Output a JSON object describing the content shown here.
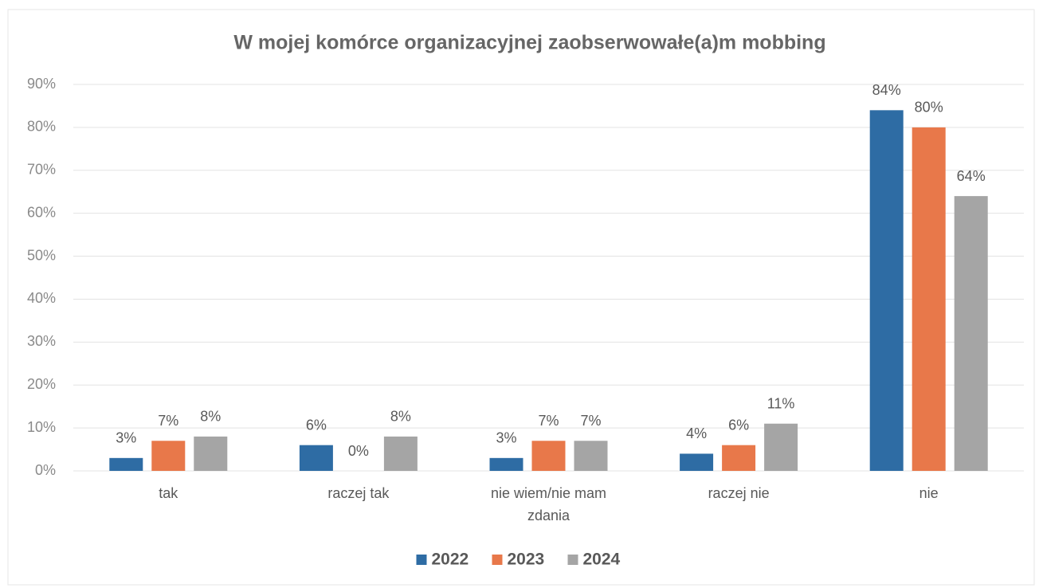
{
  "chart_data": {
    "type": "bar",
    "title": "W mojej komórce organizacyjnej zaobserwowałe(a)m mobbing",
    "categories": [
      "tak",
      "raczej tak",
      "nie wiem/nie mam zdania",
      "raczej nie",
      "nie"
    ],
    "series": [
      {
        "name": "2022",
        "color": "#2e6ca4",
        "values": [
          3,
          6,
          3,
          4,
          84
        ],
        "value_labels": [
          "3%",
          "6%",
          "3%",
          "4%",
          "84%"
        ]
      },
      {
        "name": "2023",
        "color": "#e8784a",
        "values": [
          7,
          0,
          7,
          6,
          80
        ],
        "value_labels": [
          "7%",
          "0%",
          "7%",
          "6%",
          "80%"
        ]
      },
      {
        "name": "2024",
        "color": "#a5a5a5",
        "values": [
          8,
          8,
          7,
          11,
          64
        ],
        "value_labels": [
          "8%",
          "8%",
          "7%",
          "11%",
          "64%"
        ]
      }
    ],
    "ylim": [
      0,
      90
    ],
    "yticks": [
      {
        "value": 0,
        "label": "0%"
      },
      {
        "value": 10,
        "label": "10%"
      },
      {
        "value": 20,
        "label": "20%"
      },
      {
        "value": 30,
        "label": "30%"
      },
      {
        "value": 40,
        "label": "40%"
      },
      {
        "value": 50,
        "label": "50%"
      },
      {
        "value": 60,
        "label": "60%"
      },
      {
        "value": 70,
        "label": "70%"
      },
      {
        "value": 80,
        "label": "80%"
      },
      {
        "value": 90,
        "label": "90%"
      }
    ],
    "grid": true,
    "legend": "bottom"
  }
}
